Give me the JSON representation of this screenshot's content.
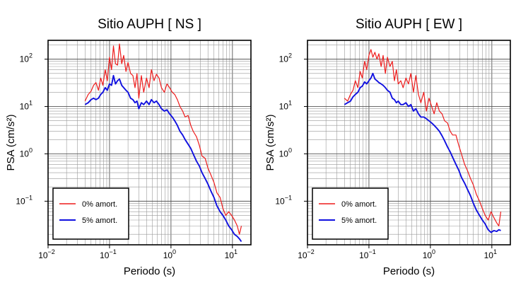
{
  "chart_data": [
    {
      "type": "line",
      "title": "Sitio AUPH [ NS ]",
      "xlabel": "Periodo (s)",
      "ylabel": "PSA (cm/s²)",
      "xscale": "log",
      "yscale": "log",
      "xlim": [
        0.01,
        20
      ],
      "ylim": [
        0.012,
        250
      ],
      "grid": true,
      "legend_position": "bottom-left",
      "xticks": [
        {
          "value": 0.01,
          "base": "10",
          "exp": "−2"
        },
        {
          "value": 0.1,
          "base": "10",
          "exp": "−1"
        },
        {
          "value": 1,
          "base": "10",
          "exp": "0"
        },
        {
          "value": 10,
          "base": "10",
          "exp": "1"
        }
      ],
      "yticks": [
        {
          "value": 0.1,
          "base": "10",
          "exp": "−1"
        },
        {
          "value": 1,
          "base": "10",
          "exp": "0"
        },
        {
          "value": 10,
          "base": "10",
          "exp": "1"
        },
        {
          "value": 100,
          "base": "10",
          "exp": "2"
        }
      ],
      "series": [
        {
          "name": "0% amort.",
          "color": "#ee1c1c",
          "x": [
            0.04,
            0.045,
            0.05,
            0.055,
            0.06,
            0.066,
            0.072,
            0.078,
            0.085,
            0.092,
            0.1,
            0.108,
            0.116,
            0.125,
            0.135,
            0.145,
            0.158,
            0.17,
            0.185,
            0.2,
            0.22,
            0.24,
            0.26,
            0.28,
            0.3,
            0.33,
            0.36,
            0.4,
            0.44,
            0.48,
            0.53,
            0.58,
            0.64,
            0.7,
            0.78,
            0.86,
            0.95,
            1.05,
            1.15,
            1.27,
            1.4,
            1.55,
            1.7,
            1.9,
            2.1,
            2.3,
            2.6,
            2.9,
            3.2,
            3.6,
            4.0,
            4.5,
            5.0,
            5.6,
            6.3,
            7.0,
            7.8,
            8.7,
            9.7,
            10.8,
            12.0,
            13.0,
            14.0
          ],
          "y": [
            13,
            18,
            21,
            28,
            32,
            22,
            40,
            28,
            60,
            35,
            110,
            60,
            190,
            80,
            75,
            210,
            80,
            120,
            55,
            85,
            50,
            45,
            25,
            50,
            15,
            45,
            20,
            40,
            25,
            60,
            35,
            48,
            40,
            25,
            20,
            30,
            25,
            20,
            18,
            14,
            10,
            8,
            6,
            6.5,
            4,
            3,
            2.3,
            1.5,
            0.9,
            0.8,
            0.5,
            0.35,
            0.25,
            0.15,
            0.12,
            0.07,
            0.05,
            0.06,
            0.05,
            0.04,
            0.03,
            0.02,
            0.03
          ]
        },
        {
          "name": "5% amort.",
          "color": "#1010e0",
          "x": [
            0.04,
            0.045,
            0.05,
            0.055,
            0.06,
            0.066,
            0.072,
            0.078,
            0.085,
            0.092,
            0.1,
            0.108,
            0.116,
            0.125,
            0.135,
            0.145,
            0.158,
            0.17,
            0.185,
            0.2,
            0.22,
            0.24,
            0.26,
            0.28,
            0.3,
            0.33,
            0.36,
            0.4,
            0.44,
            0.48,
            0.53,
            0.58,
            0.64,
            0.7,
            0.78,
            0.86,
            0.95,
            1.05,
            1.15,
            1.27,
            1.4,
            1.55,
            1.7,
            1.9,
            2.1,
            2.3,
            2.6,
            2.9,
            3.2,
            3.6,
            4.0,
            4.5,
            5.0,
            5.6,
            6.3,
            7.0,
            7.8,
            8.7,
            9.7,
            10.8,
            12.0,
            13.0,
            14.0
          ],
          "y": [
            11,
            12,
            14,
            15,
            14,
            15,
            18,
            20,
            25,
            22,
            30,
            28,
            45,
            30,
            35,
            38,
            28,
            25,
            22,
            20,
            15,
            14,
            12,
            13,
            9,
            12,
            11,
            13,
            11,
            14,
            12,
            13,
            11,
            9,
            8,
            8.5,
            7,
            6,
            5,
            4,
            3,
            2.5,
            2,
            1.6,
            1.3,
            1,
            0.7,
            0.55,
            0.4,
            0.3,
            0.23,
            0.16,
            0.12,
            0.08,
            0.06,
            0.05,
            0.04,
            0.03,
            0.025,
            0.02,
            0.018,
            0.016,
            0.014
          ]
        }
      ]
    },
    {
      "type": "line",
      "title": "Sitio AUPH [ EW ]",
      "xlabel": "Periodo (s)",
      "ylabel": "PSA (cm/s²)",
      "xscale": "log",
      "yscale": "log",
      "xlim": [
        0.01,
        20
      ],
      "ylim": [
        0.012,
        250
      ],
      "grid": true,
      "legend_position": "bottom-left",
      "xticks": [
        {
          "value": 0.01,
          "base": "10",
          "exp": "−2"
        },
        {
          "value": 0.1,
          "base": "10",
          "exp": "−1"
        },
        {
          "value": 1,
          "base": "10",
          "exp": "0"
        },
        {
          "value": 10,
          "base": "10",
          "exp": "1"
        }
      ],
      "yticks": [
        {
          "value": 0.1,
          "base": "10",
          "exp": "−1"
        },
        {
          "value": 1,
          "base": "10",
          "exp": "0"
        },
        {
          "value": 10,
          "base": "10",
          "exp": "1"
        },
        {
          "value": 100,
          "base": "10",
          "exp": "2"
        }
      ],
      "series": [
        {
          "name": "0% amort.",
          "color": "#ee1c1c",
          "x": [
            0.04,
            0.045,
            0.05,
            0.055,
            0.06,
            0.066,
            0.072,
            0.078,
            0.085,
            0.092,
            0.1,
            0.108,
            0.116,
            0.125,
            0.135,
            0.145,
            0.158,
            0.17,
            0.185,
            0.2,
            0.22,
            0.24,
            0.26,
            0.28,
            0.3,
            0.33,
            0.36,
            0.4,
            0.44,
            0.48,
            0.53,
            0.58,
            0.64,
            0.7,
            0.78,
            0.86,
            0.95,
            1.05,
            1.15,
            1.27,
            1.4,
            1.55,
            1.7,
            1.9,
            2.1,
            2.3,
            2.6,
            2.9,
            3.2,
            3.6,
            4.0,
            4.5,
            5.0,
            5.6,
            6.3,
            7.0,
            7.8,
            8.7,
            9.7,
            10.8,
            12.0,
            13.0,
            14.0
          ],
          "y": [
            15,
            13,
            18,
            22,
            35,
            25,
            55,
            40,
            90,
            60,
            120,
            160,
            110,
            140,
            100,
            130,
            70,
            120,
            50,
            110,
            70,
            90,
            35,
            60,
            30,
            35,
            25,
            40,
            30,
            50,
            20,
            45,
            18,
            12,
            20,
            8,
            15,
            10,
            7,
            12,
            8,
            7,
            5,
            4.5,
            3,
            2.5,
            2.5,
            1.5,
            1.0,
            0.6,
            0.45,
            0.3,
            0.22,
            0.14,
            0.1,
            0.07,
            0.05,
            0.04,
            0.06,
            0.045,
            0.035,
            0.03,
            0.06
          ]
        },
        {
          "name": "5% amort.",
          "color": "#1010e0",
          "x": [
            0.04,
            0.045,
            0.05,
            0.055,
            0.06,
            0.066,
            0.072,
            0.078,
            0.085,
            0.092,
            0.1,
            0.108,
            0.116,
            0.125,
            0.135,
            0.145,
            0.158,
            0.17,
            0.185,
            0.2,
            0.22,
            0.24,
            0.26,
            0.28,
            0.3,
            0.33,
            0.36,
            0.4,
            0.44,
            0.48,
            0.53,
            0.58,
            0.64,
            0.7,
            0.78,
            0.86,
            0.95,
            1.05,
            1.15,
            1.27,
            1.4,
            1.55,
            1.7,
            1.9,
            2.1,
            2.3,
            2.6,
            2.9,
            3.2,
            3.6,
            4.0,
            4.5,
            5.0,
            5.6,
            6.3,
            7.0,
            7.8,
            8.7,
            9.7,
            10.8,
            12.0,
            13.0,
            14.0
          ],
          "y": [
            11,
            12,
            13,
            16,
            18,
            20,
            25,
            27,
            33,
            30,
            35,
            40,
            50,
            38,
            35,
            32,
            30,
            28,
            25,
            22,
            20,
            15,
            14,
            12,
            13,
            11,
            11,
            12,
            10,
            11,
            8,
            9,
            7,
            6,
            6,
            5.5,
            5,
            4.5,
            4,
            3.5,
            3,
            2.4,
            1.9,
            1.4,
            1.1,
            0.85,
            0.6,
            0.45,
            0.32,
            0.24,
            0.18,
            0.13,
            0.09,
            0.065,
            0.05,
            0.04,
            0.033,
            0.025,
            0.022,
            0.024,
            0.023,
            0.025,
            0.024
          ]
        }
      ]
    }
  ]
}
